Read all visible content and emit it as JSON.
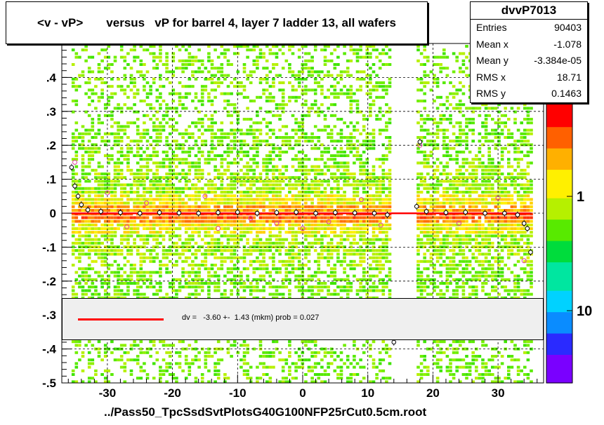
{
  "title": "<v - vP>       versus   vP for barrel 4, layer 7 ladder 13, all wafers",
  "stats": {
    "name": "dvvP7013",
    "rows": [
      {
        "label": "Entries",
        "value": "90403"
      },
      {
        "label": "Mean x",
        "value": "-1.078"
      },
      {
        "label": "Mean y",
        "value": "-3.384e-05"
      },
      {
        "label": "RMS x",
        "value": "18.71"
      },
      {
        "label": "RMS y",
        "value": "0.1463"
      }
    ]
  },
  "legend": {
    "text": "dv =   -3.60 +-  1.43 (mkm) prob = 0.027",
    "color": "#ff0000"
  },
  "x_title": "../Pass50_TpcSsdSvtPlotsG40G100NFP25rCut0.5cm.root",
  "chart_data": {
    "type": "heatmap",
    "title": "<v - vP>       versus   vP for barrel 4, layer 7 ladder 13, all wafers",
    "xlabel": "../Pass50_TpcSsdSvtPlotsG40G100NFP25rCut0.5cm.root",
    "ylabel": "",
    "xlim": [
      -37,
      37
    ],
    "ylim": [
      -0.5,
      0.5
    ],
    "x_ticks": [
      -30,
      -20,
      -10,
      0,
      10,
      20,
      30
    ],
    "y_ticks": [
      -0.5,
      -0.4,
      -0.3,
      -0.2,
      -0.1,
      0,
      0.1,
      0.2,
      0.3,
      0.4
    ],
    "colorbar_ticks": [
      {
        "label": "1",
        "value": 1
      },
      {
        "label": "10",
        "value": 10
      }
    ],
    "colorbar_colors": [
      "#7a00ff",
      "#2a2aff",
      "#0a8cff",
      "#00d2ff",
      "#00e6a0",
      "#00dc3c",
      "#58ea00",
      "#b6f000",
      "#fff000",
      "#ffb000",
      "#ff6000",
      "#ff0000"
    ],
    "data_regions": [
      {
        "x_from": -35.5,
        "x_to": 13.5
      },
      {
        "x_from": 17.5,
        "x_to": 35
      }
    ],
    "fit": {
      "value_mkm": -3.6,
      "error_mkm": 1.43,
      "prob": 0.027,
      "color": "#ff0000"
    },
    "profile_points": [
      {
        "x": -35.5,
        "y": 0.135
      },
      {
        "x": -35,
        "y": 0.08
      },
      {
        "x": -34.5,
        "y": 0.05
      },
      {
        "x": -34,
        "y": 0.025
      },
      {
        "x": -33,
        "y": 0.01
      },
      {
        "x": -31,
        "y": 0.005
      },
      {
        "x": -28,
        "y": 0.002
      },
      {
        "x": -25,
        "y": 0.0
      },
      {
        "x": -22,
        "y": 0.002
      },
      {
        "x": -19,
        "y": 0.001
      },
      {
        "x": -16,
        "y": 0.0
      },
      {
        "x": -13,
        "y": 0.002
      },
      {
        "x": -10,
        "y": 0.003
      },
      {
        "x": -7,
        "y": 0.0
      },
      {
        "x": -4,
        "y": 0.002
      },
      {
        "x": -1,
        "y": 0.003
      },
      {
        "x": 2,
        "y": 0.0
      },
      {
        "x": 5,
        "y": 0.002
      },
      {
        "x": 8,
        "y": 0.001
      },
      {
        "x": 11,
        "y": 0.0
      },
      {
        "x": 13,
        "y": -0.005
      },
      {
        "x": 14,
        "y": -0.38
      },
      {
        "x": 17.5,
        "y": 0.02
      },
      {
        "x": 18,
        "y": 0.21
      },
      {
        "x": 19,
        "y": 0.005
      },
      {
        "x": 22,
        "y": 0.002
      },
      {
        "x": 25,
        "y": 0.003
      },
      {
        "x": 28,
        "y": 0.0
      },
      {
        "x": 31,
        "y": 0.0
      },
      {
        "x": 33,
        "y": -0.005
      },
      {
        "x": 34,
        "y": -0.03
      },
      {
        "x": 34.5,
        "y": -0.045
      },
      {
        "x": 35,
        "y": -0.115
      }
    ],
    "outlier_markers": [
      {
        "x": -35,
        "y": 0.15
      },
      {
        "x": -30,
        "y": 0.06
      },
      {
        "x": -27,
        "y": -0.04
      },
      {
        "x": -24,
        "y": 0.03
      },
      {
        "x": -15,
        "y": 0.05
      },
      {
        "x": -13,
        "y": -0.045
      },
      {
        "x": -8,
        "y": -0.015
      },
      {
        "x": -4,
        "y": -0.03
      },
      {
        "x": 0,
        "y": -0.045
      },
      {
        "x": 4,
        "y": -0.025
      },
      {
        "x": 9,
        "y": 0.04
      },
      {
        "x": 12,
        "y": -0.035
      },
      {
        "x": 18,
        "y": 0.2
      },
      {
        "x": 24,
        "y": -0.03
      },
      {
        "x": 30,
        "y": 0.045
      },
      {
        "x": 34,
        "y": -0.14
      }
    ]
  }
}
